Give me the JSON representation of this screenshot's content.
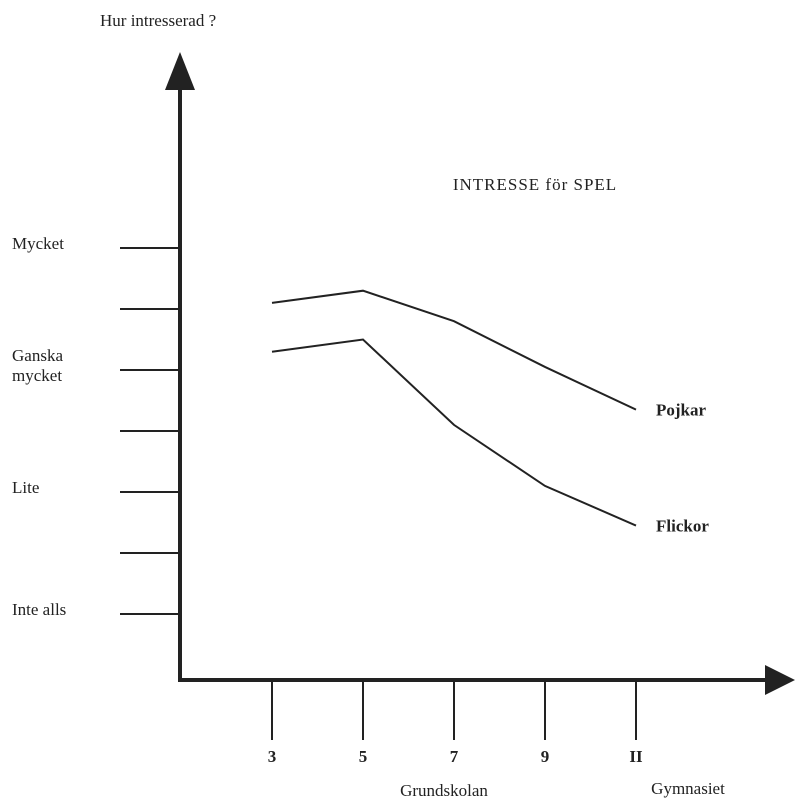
{
  "chart_data": {
    "type": "line",
    "title": "INTRESSE för SPEL",
    "y_label": "Hur intresserad ?",
    "categories": [
      "3",
      "5",
      "7",
      "9",
      "II"
    ],
    "x_groups": [
      "Grundskolan",
      "Gymnasiet"
    ],
    "series": [
      {
        "name": "Pojkar",
        "color": "#222222",
        "values": [
          6.1,
          6.3,
          5.8,
          5.05,
          4.35
        ]
      },
      {
        "name": "Flickor",
        "color": "#222222",
        "values": [
          5.3,
          5.5,
          4.1,
          3.1,
          2.45
        ]
      }
    ],
    "ylim": [
      0,
      10
    ],
    "yticks": [
      {
        "value": 1,
        "label": "Inte alls"
      },
      {
        "value": 3,
        "label": "Lite"
      },
      {
        "value": 5,
        "label": "Ganska mycket"
      },
      {
        "value": 7,
        "label": "Mycket"
      }
    ],
    "yticks_minor": [
      2,
      4,
      6
    ]
  }
}
